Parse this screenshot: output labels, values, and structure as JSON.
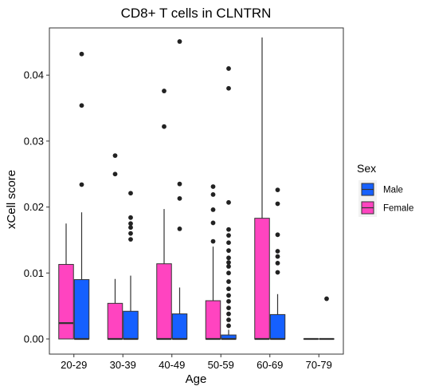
{
  "chart_data": {
    "type": "box",
    "title": "CD8+ T cells in CLNTRN",
    "xlabel": "Age",
    "ylabel": "xCell score",
    "categories": [
      "20-29",
      "30-39",
      "40-49",
      "50-59",
      "60-69",
      "70-79"
    ],
    "ylim": [
      -0.002,
      0.047
    ],
    "yticks": [
      0.0,
      0.01,
      0.02,
      0.03,
      0.04
    ],
    "ytick_labels": [
      "0.00",
      "0.01",
      "0.02",
      "0.03",
      "0.04"
    ],
    "grid": false,
    "legend": {
      "title": "Sex",
      "position": "right"
    },
    "series": [
      {
        "name": "Male",
        "color": "#1560FF",
        "boxes": [
          {
            "min": 0.0,
            "q1": 0.0,
            "median": 0.0,
            "q3": 0.009,
            "max": 0.0192,
            "outliers": [
              0.0234,
              0.0354,
              0.0432
            ]
          },
          {
            "min": 0.0,
            "q1": 0.0,
            "median": 0.0,
            "q3": 0.0042,
            "max": 0.0096,
            "outliers": [
              0.0151,
              0.016,
              0.0169,
              0.0175,
              0.0184,
              0.0221
            ]
          },
          {
            "min": 0.0,
            "q1": 0.0,
            "median": 0.0,
            "q3": 0.0038,
            "max": 0.0078,
            "outliers": [
              0.0167,
              0.0213,
              0.0235,
              0.0451
            ]
          },
          {
            "min": 0.0,
            "q1": 0.0,
            "median": 0.0,
            "q3": 0.0006,
            "max": 0.0014,
            "outliers": [
              0.002,
              0.0029,
              0.0038,
              0.0047,
              0.0057,
              0.0066,
              0.0076,
              0.0087,
              0.01,
              0.011,
              0.0116,
              0.0123,
              0.0134,
              0.0146,
              0.0157,
              0.0166,
              0.0207,
              0.038,
              0.041
            ]
          },
          {
            "min": 0.0,
            "q1": 0.0,
            "median": 0.0,
            "q3": 0.0037,
            "max": 0.0068,
            "outliers": [
              0.0101,
              0.0115,
              0.0125,
              0.0133,
              0.0158,
              0.0205,
              0.0226
            ]
          },
          {
            "min": 0.0,
            "q1": 0.0,
            "median": 0.0,
            "q3": 0.0,
            "max": 0.0,
            "outliers": [
              0.0061
            ]
          }
        ]
      },
      {
        "name": "Female",
        "color": "#FF44C0",
        "boxes": [
          {
            "min": 0.0,
            "q1": 0.0,
            "median": 0.0024,
            "q3": 0.0113,
            "max": 0.0175,
            "outliers": []
          },
          {
            "min": 0.0,
            "q1": 0.0,
            "median": 0.0,
            "q3": 0.0054,
            "max": 0.0091,
            "outliers": [
              0.025,
              0.0278
            ]
          },
          {
            "min": 0.0,
            "q1": 0.0,
            "median": 0.0,
            "q3": 0.0114,
            "max": 0.0197,
            "outliers": [
              0.0322,
              0.0376
            ]
          },
          {
            "min": 0.0,
            "q1": 0.0,
            "median": 0.0,
            "q3": 0.0058,
            "max": 0.014,
            "outliers": [
              0.0148,
              0.0176,
              0.0196,
              0.0219,
              0.0231
            ]
          },
          {
            "min": 0.0,
            "q1": 0.0,
            "median": 0.0,
            "q3": 0.0183,
            "max": 0.0457,
            "outliers": []
          },
          {
            "min": 0.0,
            "q1": 0.0,
            "median": 0.0,
            "q3": 0.0,
            "max": 0.0,
            "outliers": []
          }
        ]
      }
    ]
  }
}
